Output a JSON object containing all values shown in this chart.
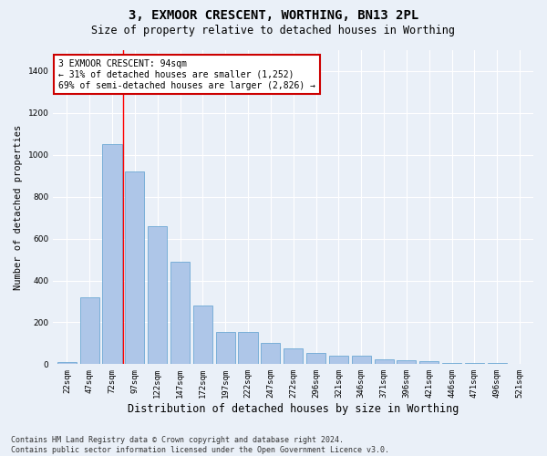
{
  "title": "3, EXMOOR CRESCENT, WORTHING, BN13 2PL",
  "subtitle": "Size of property relative to detached houses in Worthing",
  "xlabel": "Distribution of detached houses by size in Worthing",
  "ylabel": "Number of detached properties",
  "categories": [
    "22sqm",
    "47sqm",
    "72sqm",
    "97sqm",
    "122sqm",
    "147sqm",
    "172sqm",
    "197sqm",
    "222sqm",
    "247sqm",
    "272sqm",
    "296sqm",
    "321sqm",
    "346sqm",
    "371sqm",
    "396sqm",
    "421sqm",
    "446sqm",
    "471sqm",
    "496sqm",
    "521sqm"
  ],
  "values": [
    10,
    320,
    1050,
    920,
    660,
    490,
    280,
    155,
    155,
    100,
    75,
    55,
    40,
    40,
    25,
    20,
    15,
    5,
    5,
    5,
    3
  ],
  "bar_color": "#aec6e8",
  "bar_edge_color": "#5a9ecf",
  "red_line_x": 2.5,
  "annotation_text": "3 EXMOOR CRESCENT: 94sqm\n← 31% of detached houses are smaller (1,252)\n69% of semi-detached houses are larger (2,826) →",
  "annotation_box_color": "#ffffff",
  "annotation_box_edge": "#cc0000",
  "ylim": [
    0,
    1500
  ],
  "yticks": [
    0,
    200,
    400,
    600,
    800,
    1000,
    1200,
    1400
  ],
  "background_color": "#eaf0f8",
  "footer_line1": "Contains HM Land Registry data © Crown copyright and database right 2024.",
  "footer_line2": "Contains public sector information licensed under the Open Government Licence v3.0.",
  "title_fontsize": 10,
  "subtitle_fontsize": 8.5,
  "ylabel_fontsize": 7.5,
  "xlabel_fontsize": 8.5,
  "tick_fontsize": 6.5,
  "annotation_fontsize": 7,
  "footer_fontsize": 6
}
